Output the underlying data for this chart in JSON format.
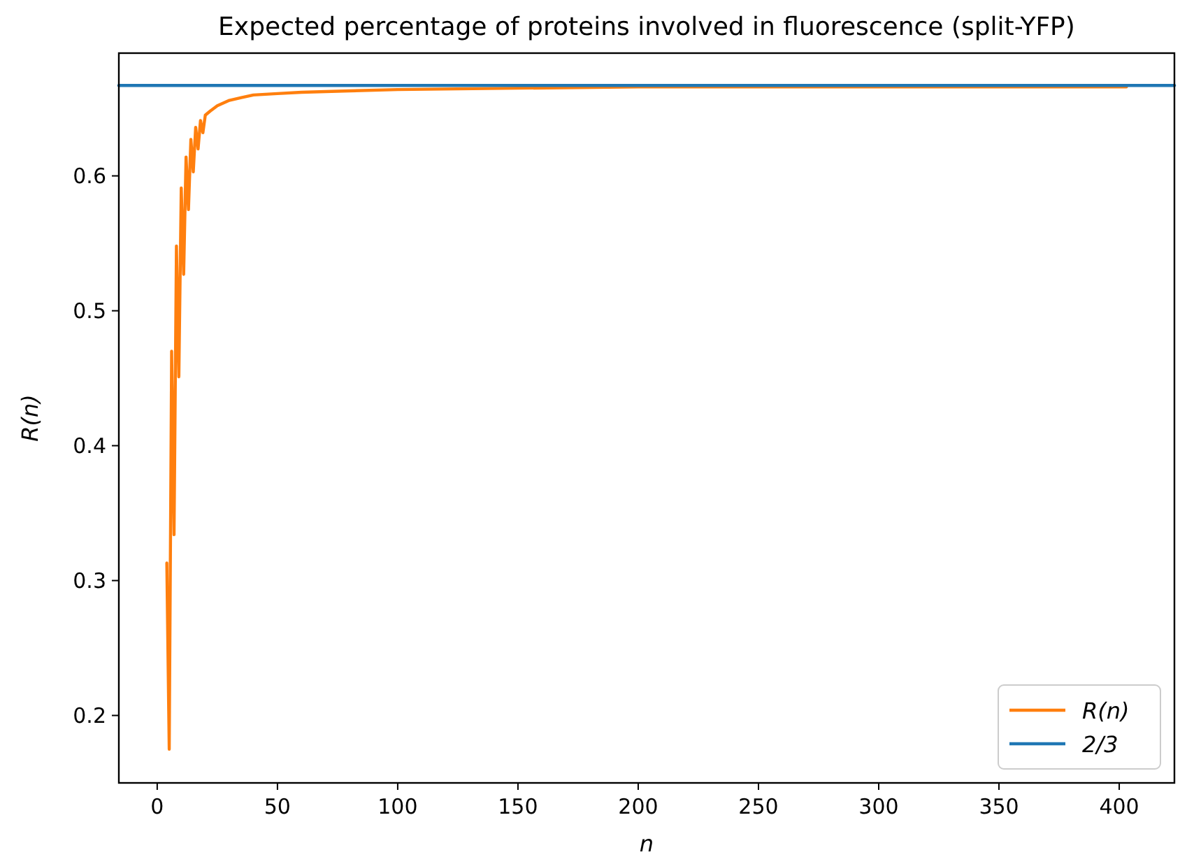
{
  "chart_data": {
    "type": "line",
    "title": "Expected percentage of proteins involved in fluorescence (split-YFP)",
    "xlabel": "n",
    "ylabel": "R(n)",
    "series": [
      {
        "name": "R(n)",
        "color": "#ff7f0e",
        "x": [
          4,
          5,
          6,
          7,
          8,
          9,
          10,
          11,
          12,
          13,
          14,
          15,
          16,
          17,
          18,
          19,
          20,
          22,
          25,
          30,
          35,
          40,
          50,
          60,
          80,
          100,
          150,
          200,
          250,
          300,
          350,
          403
        ],
        "values": [
          0.313,
          0.175,
          0.47,
          0.334,
          0.548,
          0.451,
          0.591,
          0.527,
          0.614,
          0.575,
          0.627,
          0.603,
          0.636,
          0.62,
          0.641,
          0.632,
          0.645,
          0.648,
          0.652,
          0.656,
          0.658,
          0.66,
          0.661,
          0.662,
          0.663,
          0.664,
          0.665,
          0.666,
          0.666,
          0.666,
          0.666,
          0.666
        ]
      },
      {
        "name": "2/3",
        "color": "#1f77b4",
        "x": [
          -15.95,
          422.95
        ],
        "values": [
          0.667,
          0.667
        ]
      }
    ],
    "xlim": [
      -15.95,
      422.95
    ],
    "xticks": [
      0,
      50,
      100,
      150,
      200,
      250,
      300,
      350,
      400
    ],
    "ylim": [
      0.15,
      0.691
    ],
    "yticks": [
      0.2,
      0.3,
      0.4,
      0.5,
      0.6
    ],
    "legend": "bottom right",
    "grid": false
  }
}
